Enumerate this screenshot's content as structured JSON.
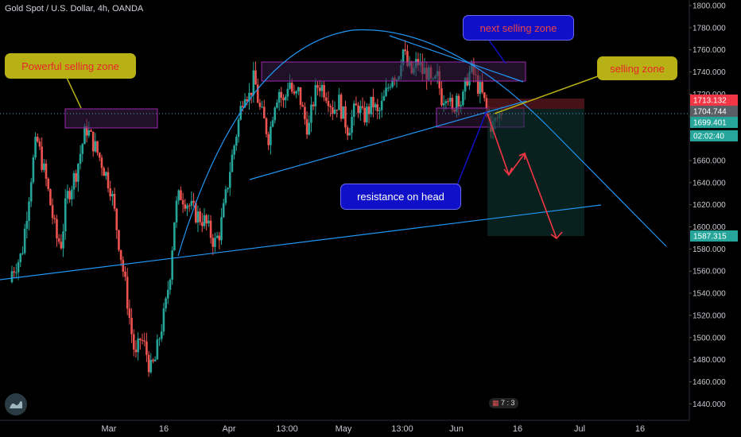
{
  "header": {
    "title": "Gold Spot / U.S. Dollar, 4h, OANDA"
  },
  "chart_data": {
    "type": "candlestick",
    "symbol": "Gold Spot / U.S. Dollar",
    "interval": "4h",
    "source": "OANDA",
    "ylim": [
      1420,
      1800
    ],
    "y_ticks": [
      1440,
      1460,
      1480,
      1500,
      1520,
      1540,
      1560,
      1580,
      1600,
      1620,
      1640,
      1660,
      1680,
      1700,
      1720,
      1740,
      1760,
      1780,
      1800
    ],
    "y_tick_labels": [
      "1440.000",
      "1460.000",
      "1480.000",
      "1500.000",
      "1520.000",
      "1540.000",
      "1560.000",
      "1580.000",
      "1600.000",
      "1620.000",
      "1640.000",
      "1660.000",
      "1680.000",
      "1700.000",
      "1720.000",
      "1740.000",
      "1760.000",
      "1780.000",
      "1800.000"
    ],
    "x_tick_labels": [
      "Mar",
      "16",
      "Apr",
      "13:00",
      "May",
      "13:00",
      "Jun",
      "16",
      "Jul",
      "16"
    ],
    "price_series": [
      [
        "2020-02-20",
        1560
      ],
      [
        "2020-02-22",
        1575
      ],
      [
        "2020-02-24",
        1650
      ],
      [
        "2020-02-25",
        1680
      ],
      [
        "2020-02-27",
        1640
      ],
      [
        "2020-02-29",
        1590
      ],
      [
        "2020-03-01",
        1585
      ],
      [
        "2020-03-02",
        1625
      ],
      [
        "2020-03-04",
        1650
      ],
      [
        "2020-03-06",
        1690
      ],
      [
        "2020-03-07",
        1680
      ],
      [
        "2020-03-09",
        1660
      ],
      [
        "2020-03-11",
        1635
      ],
      [
        "2020-03-13",
        1575
      ],
      [
        "2020-03-14",
        1545
      ],
      [
        "2020-03-15",
        1510
      ],
      [
        "2020-03-16",
        1480
      ],
      [
        "2020-03-17",
        1500
      ],
      [
        "2020-03-18",
        1490
      ],
      [
        "2020-03-19",
        1470
      ],
      [
        "2020-03-20",
        1480
      ],
      [
        "2020-03-21",
        1505
      ],
      [
        "2020-03-22",
        1525
      ],
      [
        "2020-03-23",
        1560
      ],
      [
        "2020-03-24",
        1615
      ],
      [
        "2020-03-25",
        1630
      ],
      [
        "2020-03-26",
        1625
      ],
      [
        "2020-03-28",
        1612
      ],
      [
        "2020-03-30",
        1605
      ],
      [
        "2020-04-01",
        1585
      ],
      [
        "2020-04-02",
        1595
      ],
      [
        "2020-04-03",
        1620
      ],
      [
        "2020-04-04",
        1650
      ],
      [
        "2020-04-05",
        1675
      ],
      [
        "2020-04-06",
        1700
      ],
      [
        "2020-04-07",
        1725
      ],
      [
        "2020-04-08",
        1718
      ],
      [
        "2020-04-09",
        1735
      ],
      [
        "2020-04-10",
        1708
      ],
      [
        "2020-04-11",
        1695
      ],
      [
        "2020-04-12",
        1680
      ],
      [
        "2020-04-13",
        1712
      ],
      [
        "2020-04-14",
        1724
      ],
      [
        "2020-04-15",
        1710
      ],
      [
        "2020-04-16",
        1735
      ],
      [
        "2020-04-17",
        1715
      ],
      [
        "2020-04-18",
        1722
      ],
      [
        "2020-04-19",
        1700
      ],
      [
        "2020-04-20",
        1688
      ],
      [
        "2020-04-21",
        1715
      ],
      [
        "2020-04-22",
        1730
      ],
      [
        "2020-04-23",
        1725
      ],
      [
        "2020-04-24",
        1718
      ],
      [
        "2020-04-25",
        1705
      ],
      [
        "2020-04-26",
        1715
      ],
      [
        "2020-04-27",
        1700
      ],
      [
        "2020-04-28",
        1688
      ],
      [
        "2020-04-29",
        1702
      ],
      [
        "2020-04-30",
        1710
      ],
      [
        "2020-05-01",
        1698
      ],
      [
        "2020-05-02",
        1705
      ],
      [
        "2020-05-03",
        1712
      ],
      [
        "2020-05-04",
        1700
      ],
      [
        "2020-05-05",
        1712
      ],
      [
        "2020-05-06",
        1725
      ],
      [
        "2020-05-07",
        1740
      ],
      [
        "2020-05-08",
        1735
      ],
      [
        "2020-05-09",
        1762
      ],
      [
        "2020-05-10",
        1745
      ],
      [
        "2020-05-11",
        1738
      ],
      [
        "2020-05-12",
        1750
      ],
      [
        "2020-05-13",
        1740
      ],
      [
        "2020-05-14",
        1740
      ],
      [
        "2020-05-15",
        1725
      ],
      [
        "2020-05-16",
        1735
      ],
      [
        "2020-05-17",
        1715
      ],
      [
        "2020-05-18",
        1725
      ],
      [
        "2020-05-19",
        1700
      ],
      [
        "2020-05-20",
        1722
      ],
      [
        "2020-05-21",
        1710
      ],
      [
        "2020-05-22",
        1735
      ],
      [
        "2020-05-23",
        1742
      ],
      [
        "2020-05-24",
        1730
      ],
      [
        "2020-05-25",
        1720
      ],
      [
        "2020-05-26",
        1705
      ],
      [
        "2020-05-27",
        1690
      ],
      [
        "2020-05-28",
        1697
      ],
      [
        "2020-05-29",
        1704.744
      ]
    ],
    "reference_levels": [
      {
        "price": 1713.132,
        "label": "1713.132",
        "color": "#f23645"
      },
      {
        "price": 1704.744,
        "label": "1704.744",
        "color": "#5a5f66"
      },
      {
        "price": 1699.401,
        "label": "1699.401",
        "color": "#26a69a"
      },
      {
        "label": "02:02:40",
        "color": "#26a69a"
      },
      {
        "price": 1587.315,
        "label": "1587.315",
        "color": "#26a69a"
      }
    ],
    "annotations": [
      {
        "text": "Powerful selling zone",
        "style": "olive-callout"
      },
      {
        "text": "next selling zone",
        "style": "blue-callout"
      },
      {
        "text": "selling zone",
        "style": "olive-callout"
      },
      {
        "text": "resistance on head",
        "style": "blue-callout"
      }
    ],
    "colors": {
      "up": "#26a69a",
      "down": "#ef5350",
      "trend": "#2196f3",
      "zone_border": "#9c27b0",
      "zone_fill": "#3b1f4a",
      "projection": "#f23645"
    }
  },
  "callouts": {
    "powerful": "Powerful selling zone",
    "next": "next selling zone",
    "selling": "selling zone",
    "resistance": "resistance on head"
  },
  "widget": {
    "badge": "7 : 3"
  }
}
